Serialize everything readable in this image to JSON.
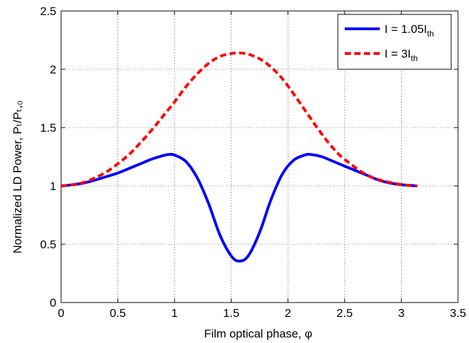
{
  "chart_data": {
    "type": "line",
    "title": "",
    "xlabel": "Film optical phase, φ",
    "ylabel": "Normalized LD Power, Pₜ/Pₜ,₀",
    "xlim": [
      0,
      3.5
    ],
    "ylim": [
      0,
      2.5
    ],
    "xticks": [
      0,
      0.5,
      1,
      1.5,
      2,
      2.5,
      3,
      3.5
    ],
    "yticks": [
      0,
      0.5,
      1,
      1.5,
      2,
      2.5
    ],
    "xtick_labels": [
      "0",
      "0.5",
      "1",
      "1.5",
      "2",
      "2.5",
      "3",
      "3.5"
    ],
    "ytick_labels": [
      "0",
      "0.5",
      "1",
      "1.5",
      "2",
      "2.5"
    ],
    "grid": true,
    "legend_position": "top-right",
    "series": [
      {
        "name": "I = 1.05I",
        "name_sub": "th",
        "color": "#0000ff",
        "style": "solid",
        "x": [
          0,
          0.1,
          0.2,
          0.3,
          0.4,
          0.5,
          0.6,
          0.7,
          0.8,
          0.9,
          0.95,
          1.0,
          1.1,
          1.2,
          1.3,
          1.4,
          1.5,
          1.5708,
          1.65,
          1.75,
          1.85,
          1.95,
          2.05,
          2.15,
          2.2,
          2.3,
          2.4,
          2.5,
          2.6,
          2.7,
          2.8,
          2.9,
          3.0,
          3.1416
        ],
        "y": [
          1.0,
          1.01,
          1.025,
          1.05,
          1.08,
          1.11,
          1.15,
          1.19,
          1.23,
          1.26,
          1.27,
          1.265,
          1.21,
          1.07,
          0.85,
          0.58,
          0.4,
          0.355,
          0.4,
          0.6,
          0.88,
          1.1,
          1.22,
          1.265,
          1.27,
          1.25,
          1.21,
          1.17,
          1.13,
          1.09,
          1.05,
          1.025,
          1.01,
          1.0
        ]
      },
      {
        "name": "I = 3I",
        "name_sub": "th",
        "color": "#ff0000",
        "style": "dashed",
        "x": [
          0,
          0.1,
          0.2,
          0.3,
          0.4,
          0.5,
          0.6,
          0.7,
          0.8,
          0.9,
          1.0,
          1.1,
          1.2,
          1.3,
          1.4,
          1.5,
          1.5708,
          1.65,
          1.75,
          1.85,
          1.95,
          2.05,
          2.15,
          2.25,
          2.35,
          2.45,
          2.55,
          2.65,
          2.75,
          2.85,
          2.95,
          3.05,
          3.1416
        ],
        "y": [
          1.0,
          1.01,
          1.03,
          1.07,
          1.12,
          1.19,
          1.27,
          1.37,
          1.48,
          1.6,
          1.72,
          1.85,
          1.96,
          2.05,
          2.11,
          2.135,
          2.14,
          2.13,
          2.09,
          2.02,
          1.92,
          1.79,
          1.65,
          1.51,
          1.38,
          1.27,
          1.19,
          1.12,
          1.07,
          1.04,
          1.02,
          1.005,
          1.0
        ]
      }
    ]
  }
}
